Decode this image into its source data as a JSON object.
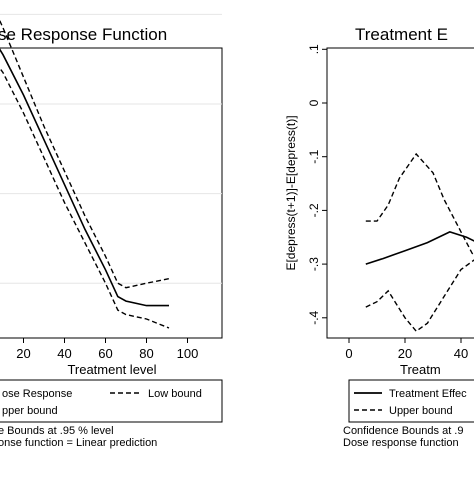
{
  "left_panel": {
    "title": "se Response Function",
    "xlabel": "Treatment level",
    "legend": {
      "row1_solid": "ose Response",
      "row1_dashed": "Low bound",
      "row2_dashed": "pper bound"
    },
    "notes": [
      "e Bounds at .95 % level",
      "onse function = Linear prediction"
    ]
  },
  "right_panel": {
    "title": "Treatment E",
    "xlabel": "Treatm",
    "ylabel": "E[depress(t+1)]-E[depress(t)]",
    "legend": {
      "row1_solid": "Treatment Effec",
      "row2_dashed": "Upper bound"
    },
    "notes": [
      "Confidence Bounds at .9",
      "Dose response function"
    ]
  },
  "chart_data": [
    {
      "type": "line",
      "title": "se Response Function",
      "xlabel": "Treatment level",
      "ylabel": "",
      "xlim": [
        0,
        100
      ],
      "x_ticks": [
        "20",
        "40",
        "60",
        "80",
        "100"
      ],
      "grid": true,
      "legend_position": "bottom",
      "series": [
        {
          "name": "ose Response",
          "style": "solid",
          "x": [
            2,
            10,
            20,
            30,
            40,
            50,
            60,
            66,
            70,
            80,
            91
          ],
          "y": [
            0.72,
            0.66,
            0.57,
            0.47,
            0.37,
            0.27,
            0.18,
            0.12,
            0.11,
            0.1,
            0.1
          ]
        },
        {
          "name": "Low bound",
          "style": "dashed",
          "x": [
            2,
            10,
            20,
            30,
            40,
            50,
            60,
            66,
            70,
            80,
            91
          ],
          "y": [
            0.67,
            0.62,
            0.53,
            0.43,
            0.33,
            0.24,
            0.15,
            0.09,
            0.08,
            0.07,
            0.05
          ]
        },
        {
          "name": "pper bound",
          "style": "dashed",
          "x": [
            2,
            6,
            10,
            20,
            30,
            40,
            50,
            60,
            66,
            70,
            80,
            91
          ],
          "y": [
            0.78,
            0.76,
            0.72,
            0.61,
            0.5,
            0.4,
            0.3,
            0.21,
            0.15,
            0.14,
            0.15,
            0.16
          ]
        }
      ]
    },
    {
      "type": "line",
      "title": "Treatment E",
      "xlabel": "Treatm",
      "ylabel": "E[depress(t+1)]-E[depress(t)]",
      "ylim": [
        -0.45,
        0.12
      ],
      "x_ticks": [
        "0",
        "20",
        "40"
      ],
      "y_ticks": [
        ".1",
        "0",
        "-.1",
        "-.2",
        "-.3",
        "-.4"
      ],
      "grid": false,
      "legend_position": "bottom",
      "series": [
        {
          "name": "Treatment Effec",
          "style": "solid",
          "x": [
            6,
            12,
            20,
            28,
            36,
            42,
            48
          ],
          "y": [
            -0.3,
            -0.29,
            -0.275,
            -0.26,
            -0.24,
            -0.25,
            -0.265
          ]
        },
        {
          "name": "Upper bound",
          "style": "dashed",
          "x": [
            6,
            10,
            14,
            18,
            24,
            30,
            34,
            40,
            44,
            48
          ],
          "y": [
            -0.22,
            -0.22,
            -0.19,
            -0.14,
            -0.095,
            -0.13,
            -0.18,
            -0.24,
            -0.28,
            -0.29
          ]
        },
        {
          "name": "",
          "style": "dashed",
          "x": [
            6,
            10,
            14,
            20,
            24,
            28,
            34,
            40,
            48
          ],
          "y": [
            -0.38,
            -0.37,
            -0.35,
            -0.4,
            -0.425,
            -0.41,
            -0.36,
            -0.31,
            -0.28
          ]
        }
      ]
    }
  ]
}
